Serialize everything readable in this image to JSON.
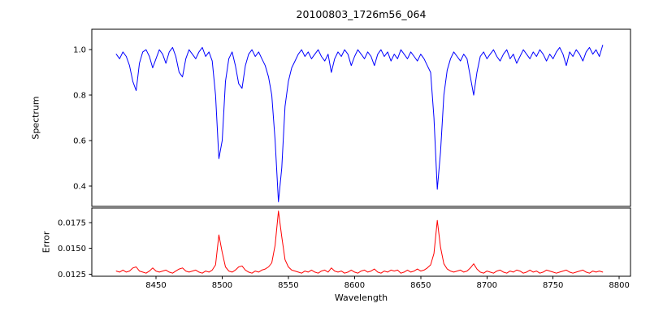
{
  "chart_data": {
    "type": "line",
    "title": "20100803_1726m56_064",
    "xlabel": "Wavelength",
    "xlim": [
      8401.5,
      8808.5
    ],
    "x_start": 8420,
    "x_step": 2.5,
    "xticks": [
      8450,
      8500,
      8550,
      8600,
      8650,
      8700,
      8750,
      8800
    ],
    "xtick_labels": [
      "8450",
      "8500",
      "8550",
      "8600",
      "8650",
      "8700",
      "8750",
      "8800"
    ],
    "grid": false,
    "legend": "none",
    "annotations": {
      "absorption_line_centers": [
        8498,
        8542,
        8662
      ]
    },
    "panels": [
      {
        "name": "spectrum",
        "ylabel": "Spectrum",
        "color": "#0000ff",
        "ylim": [
          0.31,
          1.09
        ],
        "yticks": [
          0.4,
          0.6,
          0.8,
          1.0
        ],
        "ytick_labels": [
          "0.4",
          "0.6",
          "0.8",
          "1.0"
        ],
        "values": [
          0.98,
          0.96,
          0.99,
          0.97,
          0.93,
          0.86,
          0.82,
          0.94,
          0.99,
          1.0,
          0.97,
          0.92,
          0.96,
          1.0,
          0.98,
          0.94,
          0.99,
          1.01,
          0.97,
          0.9,
          0.88,
          0.96,
          1.0,
          0.98,
          0.96,
          0.99,
          1.01,
          0.97,
          0.99,
          0.95,
          0.8,
          0.52,
          0.6,
          0.86,
          0.96,
          0.99,
          0.93,
          0.85,
          0.83,
          0.93,
          0.98,
          1.0,
          0.97,
          0.99,
          0.96,
          0.93,
          0.88,
          0.8,
          0.6,
          0.33,
          0.48,
          0.75,
          0.86,
          0.92,
          0.95,
          0.98,
          1.0,
          0.97,
          0.99,
          0.96,
          0.98,
          1.0,
          0.97,
          0.95,
          0.98,
          0.9,
          0.96,
          0.99,
          0.97,
          1.0,
          0.98,
          0.93,
          0.97,
          1.0,
          0.98,
          0.96,
          0.99,
          0.97,
          0.93,
          0.98,
          1.0,
          0.97,
          0.99,
          0.95,
          0.98,
          0.96,
          1.0,
          0.98,
          0.96,
          0.99,
          0.97,
          0.95,
          0.98,
          0.96,
          0.93,
          0.9,
          0.7,
          0.385,
          0.55,
          0.8,
          0.91,
          0.96,
          0.99,
          0.97,
          0.95,
          0.98,
          0.96,
          0.88,
          0.8,
          0.9,
          0.97,
          0.99,
          0.96,
          0.98,
          1.0,
          0.97,
          0.95,
          0.98,
          1.0,
          0.96,
          0.98,
          0.94,
          0.97,
          1.0,
          0.98,
          0.96,
          0.99,
          0.97,
          1.0,
          0.98,
          0.95,
          0.98,
          0.96,
          0.99,
          1.01,
          0.98,
          0.93,
          0.99,
          0.97,
          1.0,
          0.98,
          0.95,
          0.99,
          1.01,
          0.98,
          1.0,
          0.97,
          1.02
        ]
      },
      {
        "name": "error",
        "ylabel": "Error",
        "color": "#ff0000",
        "ylim": [
          0.0123,
          0.0189
        ],
        "yticks": [
          0.0125,
          0.015,
          0.0175
        ],
        "ytick_labels": [
          "0.0125",
          "0.0150",
          "0.0175"
        ],
        "values": [
          0.0128,
          0.0127,
          0.0129,
          0.0127,
          0.0128,
          0.0131,
          0.0132,
          0.0128,
          0.0127,
          0.0126,
          0.0128,
          0.0131,
          0.0128,
          0.0127,
          0.0128,
          0.0129,
          0.0127,
          0.0126,
          0.0128,
          0.013,
          0.0131,
          0.0128,
          0.0127,
          0.0128,
          0.0129,
          0.0127,
          0.0126,
          0.0128,
          0.0127,
          0.0129,
          0.0134,
          0.0163,
          0.0146,
          0.0132,
          0.0128,
          0.0127,
          0.0129,
          0.0132,
          0.0133,
          0.0129,
          0.0127,
          0.0126,
          0.0128,
          0.0127,
          0.0129,
          0.013,
          0.0132,
          0.0136,
          0.0153,
          0.0186,
          0.0161,
          0.0139,
          0.0132,
          0.0129,
          0.0128,
          0.0127,
          0.0126,
          0.0128,
          0.0127,
          0.0129,
          0.0127,
          0.0126,
          0.0128,
          0.0129,
          0.0127,
          0.0131,
          0.0128,
          0.0127,
          0.0128,
          0.0126,
          0.0127,
          0.0129,
          0.0127,
          0.0126,
          0.0128,
          0.0129,
          0.0127,
          0.0128,
          0.013,
          0.0127,
          0.0126,
          0.0128,
          0.0127,
          0.0129,
          0.0128,
          0.0129,
          0.0126,
          0.0127,
          0.0129,
          0.0127,
          0.0128,
          0.013,
          0.0128,
          0.0129,
          0.0131,
          0.0134,
          0.0145,
          0.0177,
          0.0151,
          0.0135,
          0.013,
          0.0128,
          0.0127,
          0.0128,
          0.0129,
          0.0127,
          0.0128,
          0.0131,
          0.0135,
          0.013,
          0.0127,
          0.0126,
          0.0128,
          0.0127,
          0.0126,
          0.0128,
          0.0129,
          0.0127,
          0.0126,
          0.0128,
          0.0127,
          0.0129,
          0.0128,
          0.0126,
          0.0127,
          0.0129,
          0.0127,
          0.0128,
          0.0126,
          0.0127,
          0.0129,
          0.0128,
          0.0127,
          0.0126,
          0.0127,
          0.0128,
          0.0129,
          0.0127,
          0.0126,
          0.0127,
          0.0128,
          0.0129,
          0.0127,
          0.0126,
          0.0128,
          0.0127,
          0.0128,
          0.0127
        ]
      }
    ]
  }
}
